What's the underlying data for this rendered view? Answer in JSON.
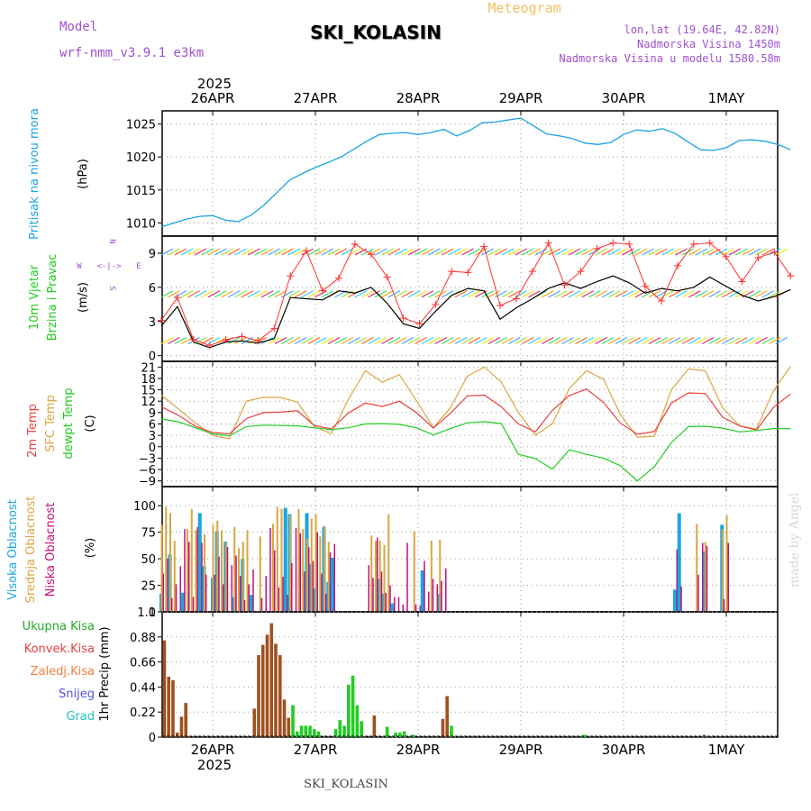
{
  "header": {
    "title": "SKI_KOLASIN",
    "subtitle": "Meteogram",
    "model_label": "Model",
    "model_name": "wrf-nmm_v3.9.1 e3km",
    "location": "lon,lat (19.64E, 42.82N)",
    "elevation": "Nadmorska Visina 1450m",
    "model_elevation": "Nadmorska Visina u modelu 1580.58m",
    "footer_name": "SKI_KOLASIN",
    "credit": "made by Angel"
  },
  "colors": {
    "pressure": "#1aa5e0",
    "wind_speed": "#000000",
    "wind_gust": "#ff3030",
    "temp_2m": "#e84040",
    "temp_sfc": "#d9a640",
    "dewpoint": "#22cc22",
    "high_cloud": "#1aa5e0",
    "mid_cloud": "#d9a640",
    "low_cloud": "#c0107a",
    "total_precip": "#22cc22",
    "conv_precip": "#a05020",
    "title_purple": "#a050d0",
    "meteogram_gold": "#f0c060"
  },
  "chart_data": [
    {
      "id": "pressure",
      "type": "line",
      "ylabel_title": "Pritisak na nivou mora",
      "ylabel_unit": "(hPa)",
      "ylim": [
        1008,
        1027
      ],
      "yticks": [
        1010,
        1015,
        1020,
        1025
      ],
      "x_days": [
        0,
        0.125,
        0.25,
        0.375,
        0.5,
        0.625,
        0.75,
        0.875,
        1,
        1.125,
        1.25,
        1.375,
        1.5,
        1.625,
        1.75,
        1.875,
        2,
        2.125,
        2.25,
        2.375,
        2.5,
        2.625,
        2.75,
        2.875,
        3,
        3.125,
        3.25,
        3.375,
        3.5,
        3.625,
        3.75,
        3.875,
        4,
        4.125,
        4.25,
        4.375,
        4.5,
        4.625,
        4.75,
        4.875,
        5,
        5.125,
        5.25,
        5.375,
        5.5,
        5.625,
        5.75,
        5.875,
        6,
        6.125
      ],
      "values": [
        1009.4,
        1010.0,
        1010.6,
        1011.0,
        1011.1,
        1010.4,
        1010.2,
        1011.2,
        1012.7,
        1014.6,
        1016.5,
        1017.5,
        1018.4,
        1019.2,
        1020.0,
        1021.2,
        1022.4,
        1023.4,
        1023.6,
        1023.7,
        1023.4,
        1023.7,
        1024.2,
        1023.2,
        1024.0,
        1025.2,
        1025.3,
        1025.6,
        1025.9,
        1024.7,
        1023.5,
        1023.2,
        1022.8,
        1022.1,
        1021.9,
        1022.2,
        1023.4,
        1024.1,
        1023.9,
        1024.3,
        1023.6,
        1022.3,
        1021.1,
        1021.0,
        1021.4,
        1022.5,
        1022.6,
        1022.4,
        1021.9,
        1021.1
      ]
    },
    {
      "id": "wind",
      "type": "line",
      "ylabel_title": "10m Vjetar Brzina i Pravac",
      "ylabel_unit": "(m/s)",
      "ylim": [
        -0.5,
        10.5
      ],
      "yticks": [
        0,
        3,
        6,
        9
      ],
      "compass": [
        "N",
        "W",
        "E",
        "S"
      ],
      "series": [
        {
          "name": "speed",
          "values": [
            2.6,
            4.3,
            1.2,
            0.7,
            1.2,
            1.3,
            1.1,
            1.5,
            5.1,
            5.0,
            4.9,
            5.7,
            5.5,
            6.0,
            4.6,
            2.8,
            2.4,
            3.9,
            5.3,
            5.9,
            5.7,
            3.2,
            4.2,
            5.0,
            5.9,
            6.4,
            5.9,
            6.5,
            7.0,
            6.4,
            5.5,
            5.9,
            5.7,
            6.0,
            6.9,
            6.1,
            5.3,
            4.8,
            5.2,
            5.8
          ]
        },
        {
          "name": "gust",
          "values": [
            3.1,
            5.1,
            1.4,
            0.9,
            1.4,
            1.7,
            1.3,
            2.4,
            7.0,
            9.2,
            5.7,
            6.8,
            9.8,
            8.9,
            6.9,
            3.3,
            2.8,
            4.5,
            7.4,
            7.3,
            9.6,
            4.4,
            5.0,
            7.4,
            9.9,
            6.2,
            7.4,
            9.4,
            9.9,
            9.8,
            6.1,
            4.8,
            7.9,
            9.8,
            9.9,
            8.7,
            6.5,
            8.6,
            9.1,
            7.0
          ]
        }
      ]
    },
    {
      "id": "temperature",
      "type": "line",
      "ylabel_title": "2m Temp",
      "ylabel_title2": "SFC Temp",
      "ylabel_title3": "dewpt Temp",
      "ylabel_unit": "(C)",
      "ylim": [
        -10.5,
        22.5
      ],
      "yticks": [
        21,
        18,
        15,
        12,
        9,
        6,
        3,
        0,
        -3,
        -6,
        -9
      ],
      "series": [
        {
          "name": "2m",
          "values": [
            10.5,
            8.3,
            5.4,
            3.8,
            3.4,
            7.4,
            9.0,
            9.1,
            9.5,
            5.6,
            4.7,
            8.9,
            11.5,
            10.6,
            12.0,
            9.0,
            4.9,
            8.8,
            13.4,
            13.6,
            10.5,
            6.0,
            3.9,
            9.6,
            13.5,
            15.2,
            11.7,
            6.2,
            3.3,
            4.0,
            11.5,
            14.2,
            14.0,
            7.8,
            5.5,
            4.4,
            10.4,
            13.9
          ]
        },
        {
          "name": "sfc",
          "values": [
            13.6,
            10.0,
            6.3,
            3.0,
            2.1,
            12.0,
            13.0,
            13.0,
            11.8,
            5.3,
            3.4,
            12.5,
            20.0,
            17.0,
            19.0,
            12.2,
            5.0,
            10.3,
            18.6,
            21.0,
            17.0,
            9.0,
            3.0,
            6.1,
            15.4,
            20.0,
            17.8,
            8.5,
            2.5,
            2.8,
            15.0,
            20.5,
            20.0,
            10.3,
            5.5,
            4.7,
            14.8,
            21.2
          ]
        },
        {
          "name": "dewpoint",
          "values": [
            7.3,
            6.6,
            5.0,
            3.4,
            2.9,
            5.3,
            5.7,
            5.6,
            5.5,
            5.0,
            4.5,
            5.0,
            6.0,
            6.1,
            5.9,
            5.0,
            3.1,
            4.8,
            6.3,
            6.6,
            6.1,
            -2.0,
            -3.1,
            -5.9,
            -0.8,
            -2.0,
            -3.0,
            -5.0,
            -9.0,
            -5.2,
            1.1,
            5.3,
            5.4,
            4.9,
            3.9,
            4.3,
            4.8,
            4.8
          ]
        }
      ]
    },
    {
      "id": "clouds",
      "type": "bar",
      "ylabel_title": "Visoka Oblacnost",
      "ylabel_title2": "Srednja Oblacnost",
      "ylabel_title3": "Niska Oblacnost",
      "ylabel_unit": "(%)",
      "ylim": [
        0,
        100
      ],
      "yticks": [
        0,
        25,
        50,
        75,
        100
      ],
      "note": "bars sampled every 1 h from 2025-04-25T13"
    },
    {
      "id": "precip",
      "type": "bar",
      "ylabel_title": "1hr Precip (mm)",
      "legend": [
        "Ukupna Kisa",
        "Konvek.Kisa",
        "Zaledj.Kisa",
        "Snijeg",
        "Grad"
      ],
      "ylim": [
        0,
        1.1
      ],
      "yticks": [
        0,
        0.22,
        0.44,
        0.66,
        0.88,
        1.1
      ]
    }
  ],
  "x_axis": {
    "year": "2025",
    "days": [
      "26APR",
      "27APR",
      "28APR",
      "29APR",
      "30APR",
      "1MAY"
    ]
  }
}
